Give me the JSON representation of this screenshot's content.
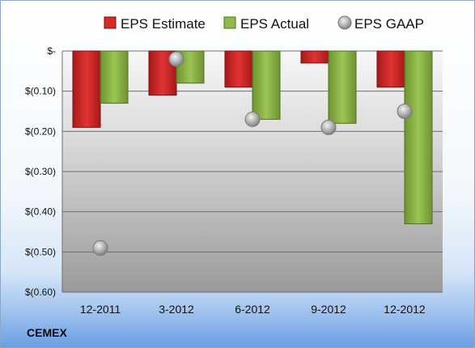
{
  "company": "CEMEX",
  "colors": {
    "estimate": "#d42a2a",
    "actual": "#8fb84a",
    "gaap": "#b8b8b8"
  },
  "chart_data": {
    "type": "bar",
    "categories": [
      "12-2011",
      "3-2012",
      "6-2012",
      "9-2012",
      "12-2012"
    ],
    "series": [
      {
        "name": "EPS Estimate",
        "kind": "bar",
        "values": [
          -0.19,
          -0.11,
          -0.09,
          -0.03,
          -0.09
        ]
      },
      {
        "name": "EPS Actual",
        "kind": "bar",
        "values": [
          -0.13,
          -0.08,
          -0.17,
          -0.18,
          -0.43
        ]
      },
      {
        "name": "EPS GAAP",
        "kind": "marker",
        "values": [
          -0.49,
          -0.02,
          -0.17,
          -0.19,
          -0.15
        ]
      }
    ],
    "ylim": [
      -0.6,
      0
    ],
    "yticks": [
      0,
      -0.1,
      -0.2,
      -0.3,
      -0.4,
      -0.5,
      -0.6
    ],
    "ytick_labels": [
      "$-",
      "$(0.10)",
      "$(0.20)",
      "$(0.30)",
      "$(0.40)",
      "$(0.50)",
      "$(0.60)"
    ],
    "grid": true,
    "legend": "top"
  }
}
